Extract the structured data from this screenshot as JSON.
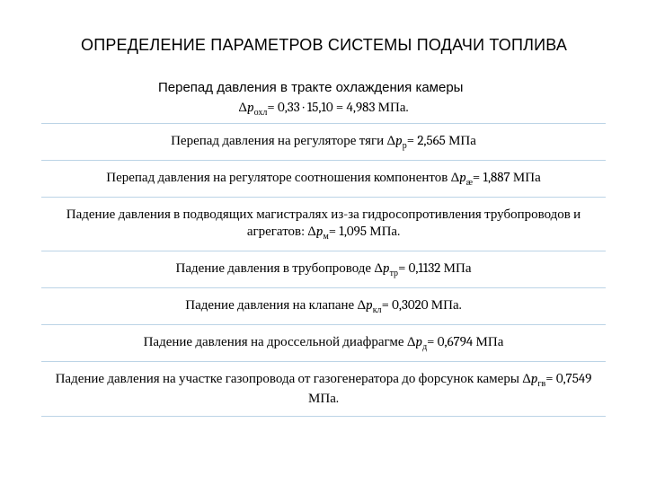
{
  "title": "ОПРЕДЕЛЕНИЕ ПАРАМЕТРОВ СИСТЕМЫ ПОДАЧИ ТОПЛИВА",
  "subtitle": "Перепад давления в тракте охлаждения камеры",
  "eq_cool": {
    "prefix": "Δ",
    "sym": "p",
    "sub": "охл",
    "text": "= 0,33  · 15,10 = 4,983 МПа."
  },
  "rows": [
    {
      "pre": "Перепад давления на регуляторе тяги ",
      "prefix": "Δ",
      "sym": "p",
      "sub": "р",
      "post": "= 2,565 МПа"
    },
    {
      "pre": "Перепад давления на регуляторе соотношения компонентов ",
      "prefix": "Δ",
      "sym": "p",
      "sub": "æ",
      "post": "= 1,887 МПа"
    },
    {
      "pre": "Падение давления в подводящих магистралях из-за гидросопротивления трубопроводов и агрегатов: ",
      "prefix": "Δ",
      "sym": "p",
      "sub": "м",
      "post": "= 1,095 МПа."
    },
    {
      "pre": "Падение давления в трубопроводе ",
      "prefix": "Δ",
      "sym": "p",
      "sub": "тр",
      "post": "= 0,1132 МПа"
    },
    {
      "pre": "Падение давления на клапане ",
      "prefix": "Δ",
      "sym": "p",
      "sub": "кл",
      "post": "= 0,3020 МПа."
    },
    {
      "pre": "Падение давления на дроссельной диафрагме ",
      "prefix": "Δ",
      "sym": "p",
      "sub": "д",
      "post": "= 0,6794 МПа"
    },
    {
      "pre": "Падение давления на участке газопровода от газогенератора до форсунок камеры ",
      "prefix": "Δ",
      "sym": "p",
      "sub": "гв",
      "post": "= 0,7549 МПа."
    }
  ],
  "style": {
    "border_color": "#bcd4e6",
    "title_fontsize": 18,
    "body_fontsize": 15,
    "sub_fontsize": 10,
    "text_color": "#000000",
    "background_color": "#ffffff"
  }
}
